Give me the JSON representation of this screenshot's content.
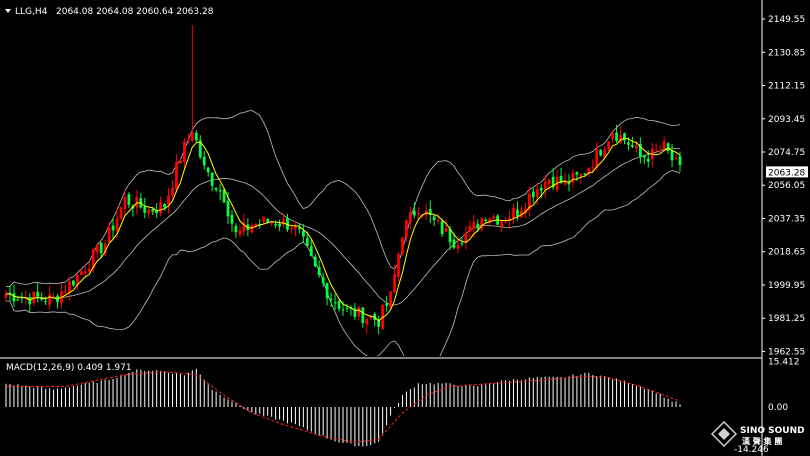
{
  "symbol_line": {
    "symbol": "LLG,H4",
    "ohlc": "2064.08 2064.08 2060.64 2063.28"
  },
  "price_axis": {
    "ticks": [
      "2149.55",
      "2130.85",
      "2112.15",
      "2093.45",
      "2074.75",
      "2056.05",
      "2037.35",
      "2018.65",
      "1999.95",
      "1981.25",
      "1962.55"
    ],
    "current_price": "2063.28"
  },
  "indicator": {
    "label": "MACD(12,26,9) 0.409 1.971",
    "ticks": [
      "15.412",
      "0.00",
      "-14.246"
    ]
  },
  "logo": {
    "brand": "SINO SOUND",
    "cn": "漢 聲 集 團"
  },
  "colors": {
    "background": "#000000",
    "bull": "#00ff40",
    "bear": "#ff0000",
    "bands": "#c0c0c0",
    "ma": "#ffff00",
    "macd_hist": "#ffffff",
    "macd_signal": "#ff2020"
  },
  "chart_data": {
    "type": "candlestick",
    "title": "LLG,H4",
    "ylim": [
      1960,
      2158
    ],
    "indicators": [
      "Bollinger Bands",
      "Moving Average"
    ],
    "anchors": [
      [
        0,
        1995
      ],
      [
        5,
        1993
      ],
      [
        12,
        1992
      ],
      [
        18,
        2005
      ],
      [
        25,
        2024
      ],
      [
        30,
        2048
      ],
      [
        36,
        2042
      ],
      [
        40,
        2045
      ],
      [
        44,
        2072
      ],
      [
        47,
        2088
      ],
      [
        50,
        2065
      ],
      [
        55,
        2050
      ],
      [
        58,
        2028
      ],
      [
        62,
        2034
      ],
      [
        67,
        2036
      ],
      [
        72,
        2034
      ],
      [
        74,
        2028
      ],
      [
        78,
        2008
      ],
      [
        82,
        1993
      ],
      [
        86,
        1985
      ],
      [
        90,
        1983
      ],
      [
        94,
        1980
      ],
      [
        97,
        1993
      ],
      [
        100,
        2030
      ],
      [
        104,
        2045
      ],
      [
        108,
        2035
      ],
      [
        113,
        2025
      ],
      [
        117,
        2030
      ],
      [
        121,
        2040
      ],
      [
        125,
        2037
      ],
      [
        129,
        2042
      ],
      [
        133,
        2053
      ],
      [
        137,
        2060
      ],
      [
        141,
        2057
      ],
      [
        145,
        2061
      ],
      [
        149,
        2073
      ],
      [
        153,
        2087
      ],
      [
        157,
        2080
      ],
      [
        160,
        2072
      ],
      [
        163,
        2073
      ],
      [
        166,
        2077
      ],
      [
        170,
        2064
      ]
    ],
    "spike": {
      "index": 47,
      "high": 2146
    },
    "macd_ylim": [
      -16,
      16
    ],
    "macd_anchors": [
      [
        0,
        8
      ],
      [
        12,
        6
      ],
      [
        25,
        9
      ],
      [
        33,
        12.5
      ],
      [
        38,
        12.5
      ],
      [
        45,
        11
      ],
      [
        48,
        13
      ],
      [
        52,
        6
      ],
      [
        57,
        2
      ],
      [
        62,
        -2
      ],
      [
        68,
        -4
      ],
      [
        73,
        -6
      ],
      [
        78,
        -9
      ],
      [
        84,
        -12
      ],
      [
        90,
        -13.5
      ],
      [
        94,
        -12
      ],
      [
        97,
        -3
      ],
      [
        100,
        4
      ],
      [
        104,
        8
      ],
      [
        110,
        8
      ],
      [
        118,
        7
      ],
      [
        126,
        9
      ],
      [
        134,
        10
      ],
      [
        140,
        10
      ],
      [
        147,
        11.5
      ],
      [
        152,
        10
      ],
      [
        158,
        8
      ],
      [
        164,
        5
      ],
      [
        168,
        2
      ],
      [
        170,
        1
      ]
    ],
    "signal_anchors": [
      [
        0,
        7
      ],
      [
        15,
        7
      ],
      [
        30,
        11
      ],
      [
        40,
        12
      ],
      [
        48,
        11
      ],
      [
        55,
        4
      ],
      [
        62,
        -2
      ],
      [
        70,
        -6
      ],
      [
        80,
        -10
      ],
      [
        88,
        -12
      ],
      [
        94,
        -11
      ],
      [
        100,
        -2
      ],
      [
        106,
        4
      ],
      [
        112,
        7
      ],
      [
        122,
        8
      ],
      [
        134,
        9
      ],
      [
        146,
        10.5
      ],
      [
        152,
        10
      ],
      [
        160,
        7
      ],
      [
        166,
        4
      ],
      [
        170,
        2
      ]
    ]
  }
}
